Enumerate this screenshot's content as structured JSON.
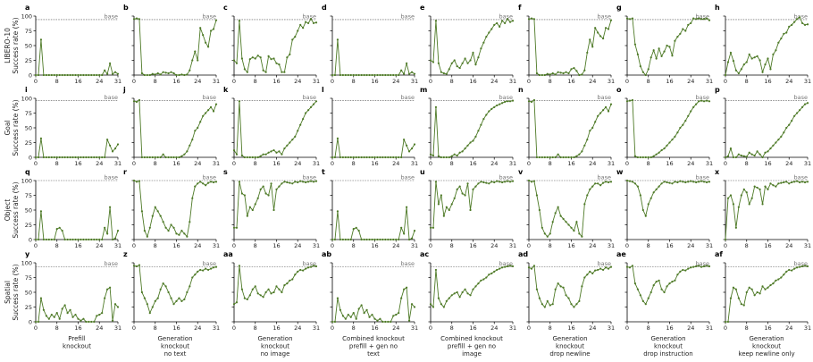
{
  "figure": {
    "row_labels": [
      [
        "LIBERO-10",
        "Success rate (%)"
      ],
      [
        "Goal",
        "Success rate (%)"
      ],
      [
        "Object",
        "Success rate (%)"
      ],
      [
        "Spatial",
        "Success rate (%)"
      ]
    ],
    "col_labels": [
      [
        "Prefill",
        "knockout"
      ],
      [
        "Generation",
        "knockout",
        "no text"
      ],
      [
        "Generation",
        "knockout",
        "no image"
      ],
      [
        "Combined knockout",
        "prefill + gen no",
        "text"
      ],
      [
        "Combined knockout",
        "prefill + gen no",
        "image"
      ],
      [
        "Generation",
        "knockout",
        "drop newline"
      ],
      [
        "Generation",
        "knockout",
        "drop instruction"
      ],
      [
        "Generation",
        "knockout",
        "keep newline only"
      ]
    ],
    "colors": {
      "line": "#4e7a27",
      "marker": "#4e7a27",
      "baseline": "#555555"
    }
  },
  "chart_data": {
    "type": "line",
    "x_ticks": [
      0,
      8,
      16,
      24,
      31
    ],
    "y_ticks": [
      0,
      25,
      50,
      75,
      100
    ],
    "ylim": [
      0,
      100
    ],
    "xlim": [
      0,
      31
    ],
    "baseline_label": "base",
    "grid": false,
    "panels": [
      {
        "letter": "a",
        "baseline": 94,
        "values": [
          0,
          0,
          60,
          0,
          0,
          0,
          0,
          0,
          0,
          0,
          0,
          0,
          0,
          0,
          0,
          0,
          0,
          0,
          0,
          0,
          0,
          0,
          0,
          0,
          0,
          0,
          8,
          2,
          20,
          2,
          5,
          2
        ]
      },
      {
        "letter": "b",
        "baseline": 94,
        "values": [
          95,
          96,
          95,
          3,
          0,
          0,
          0,
          2,
          1,
          3,
          1,
          5,
          4,
          3,
          5,
          3,
          0,
          0,
          1,
          0,
          1,
          8,
          25,
          40,
          25,
          80,
          68,
          55,
          48,
          75,
          78,
          93
        ]
      },
      {
        "letter": "c",
        "baseline": 94,
        "values": [
          25,
          20,
          92,
          28,
          10,
          5,
          27,
          30,
          28,
          33,
          30,
          8,
          5,
          32,
          27,
          28,
          20,
          18,
          5,
          5,
          30,
          35,
          60,
          65,
          75,
          85,
          80,
          90,
          88,
          95,
          88,
          89
        ]
      },
      {
        "letter": "d",
        "baseline": 94,
        "values": [
          0,
          0,
          60,
          0,
          0,
          0,
          0,
          0,
          0,
          0,
          0,
          0,
          0,
          0,
          0,
          0,
          0,
          0,
          0,
          0,
          0,
          0,
          0,
          0,
          0,
          0,
          8,
          2,
          20,
          2,
          5,
          2
        ]
      },
      {
        "letter": "e",
        "baseline": 94,
        "values": [
          25,
          22,
          92,
          20,
          5,
          3,
          2,
          10,
          20,
          25,
          15,
          12,
          20,
          28,
          20,
          25,
          38,
          18,
          30,
          45,
          55,
          65,
          72,
          78,
          85,
          88,
          82,
          92,
          88,
          95,
          90,
          92
        ]
      },
      {
        "letter": "f",
        "baseline": 94,
        "values": [
          95,
          96,
          95,
          3,
          0,
          0,
          0,
          2,
          1,
          3,
          1,
          5,
          4,
          3,
          5,
          3,
          10,
          12,
          7,
          0,
          1,
          8,
          38,
          60,
          48,
          80,
          72,
          66,
          62,
          80,
          78,
          93
        ]
      },
      {
        "letter": "g",
        "baseline": 94,
        "values": [
          96,
          95,
          96,
          52,
          35,
          15,
          5,
          0,
          10,
          30,
          42,
          28,
          45,
          32,
          40,
          50,
          48,
          33,
          58,
          65,
          70,
          78,
          75,
          85,
          88,
          96,
          95,
          96,
          95,
          95,
          96,
          93
        ]
      },
      {
        "letter": "h",
        "baseline": 94,
        "values": [
          0,
          22,
          38,
          24,
          8,
          3,
          10,
          18,
          22,
          35,
          28,
          30,
          32,
          25,
          5,
          18,
          28,
          10,
          35,
          42,
          55,
          62,
          70,
          72,
          82,
          85,
          90,
          95,
          98,
          88,
          85,
          86
        ]
      },
      {
        "letter": "i",
        "baseline": 96,
        "values": [
          0,
          0,
          32,
          0,
          0,
          0,
          0,
          0,
          0,
          0,
          0,
          0,
          0,
          0,
          0,
          0,
          0,
          0,
          0,
          0,
          0,
          0,
          0,
          0,
          0,
          0,
          0,
          30,
          20,
          10,
          15,
          22
        ]
      },
      {
        "letter": "j",
        "baseline": 96,
        "values": [
          95,
          94,
          97,
          0,
          0,
          0,
          0,
          0,
          0,
          0,
          0,
          5,
          0,
          0,
          0,
          0,
          0,
          0,
          2,
          5,
          10,
          20,
          30,
          45,
          50,
          60,
          70,
          75,
          80,
          85,
          78,
          90
        ]
      },
      {
        "letter": "k",
        "baseline": 96,
        "values": [
          12,
          5,
          95,
          3,
          0,
          0,
          0,
          0,
          0,
          0,
          2,
          5,
          5,
          8,
          10,
          12,
          8,
          10,
          5,
          15,
          20,
          25,
          30,
          35,
          45,
          55,
          65,
          75,
          80,
          85,
          90,
          95
        ]
      },
      {
        "letter": "l",
        "baseline": 96,
        "values": [
          0,
          0,
          32,
          0,
          0,
          0,
          0,
          0,
          0,
          0,
          0,
          0,
          0,
          0,
          0,
          0,
          0,
          0,
          0,
          0,
          0,
          0,
          0,
          0,
          0,
          0,
          0,
          30,
          20,
          10,
          15,
          22
        ]
      },
      {
        "letter": "m",
        "baseline": 96,
        "values": [
          5,
          3,
          85,
          2,
          0,
          0,
          0,
          0,
          2,
          5,
          3,
          8,
          10,
          15,
          20,
          25,
          28,
          35,
          45,
          55,
          65,
          72,
          78,
          82,
          85,
          88,
          90,
          92,
          94,
          95,
          95,
          96
        ]
      },
      {
        "letter": "n",
        "baseline": 96,
        "values": [
          95,
          94,
          97,
          0,
          0,
          0,
          0,
          0,
          0,
          0,
          0,
          5,
          0,
          0,
          0,
          0,
          0,
          0,
          2,
          5,
          10,
          20,
          30,
          45,
          50,
          60,
          70,
          75,
          80,
          85,
          78,
          90
        ]
      },
      {
        "letter": "o",
        "baseline": 96,
        "values": [
          95,
          96,
          97,
          2,
          0,
          0,
          0,
          0,
          0,
          0,
          2,
          5,
          8,
          12,
          15,
          20,
          25,
          30,
          35,
          42,
          50,
          55,
          62,
          70,
          78,
          85,
          90,
          95,
          96,
          95,
          96,
          95
        ]
      },
      {
        "letter": "p",
        "baseline": 96,
        "values": [
          0,
          2,
          15,
          0,
          0,
          5,
          3,
          2,
          1,
          8,
          5,
          3,
          10,
          5,
          0,
          8,
          10,
          15,
          20,
          25,
          30,
          35,
          42,
          50,
          55,
          62,
          70,
          75,
          80,
          85,
          90,
          92
        ]
      },
      {
        "letter": "q",
        "baseline": 100,
        "values": [
          0,
          0,
          48,
          0,
          0,
          0,
          0,
          0,
          18,
          20,
          15,
          0,
          0,
          0,
          0,
          0,
          0,
          0,
          0,
          0,
          0,
          0,
          0,
          0,
          0,
          0,
          20,
          10,
          55,
          0,
          2,
          15
        ]
      },
      {
        "letter": "r",
        "baseline": 100,
        "values": [
          100,
          98,
          99,
          48,
          15,
          5,
          20,
          40,
          55,
          48,
          40,
          30,
          20,
          15,
          25,
          20,
          10,
          8,
          15,
          10,
          5,
          30,
          70,
          90,
          95,
          98,
          95,
          92,
          96,
          98,
          97,
          98
        ]
      },
      {
        "letter": "s",
        "baseline": 100,
        "values": [
          20,
          20,
          98,
          78,
          75,
          40,
          55,
          50,
          60,
          70,
          85,
          90,
          78,
          75,
          95,
          50,
          85,
          90,
          95,
          98,
          97,
          96,
          95,
          98,
          97,
          99,
          98,
          97,
          98,
          99,
          98,
          99
        ]
      },
      {
        "letter": "t",
        "baseline": 100,
        "values": [
          0,
          0,
          48,
          0,
          0,
          0,
          0,
          0,
          18,
          20,
          15,
          0,
          0,
          0,
          0,
          0,
          0,
          0,
          0,
          0,
          0,
          0,
          0,
          0,
          0,
          0,
          20,
          10,
          55,
          0,
          2,
          15
        ]
      },
      {
        "letter": "u",
        "baseline": 100,
        "values": [
          20,
          20,
          98,
          60,
          75,
          40,
          55,
          50,
          60,
          70,
          85,
          90,
          78,
          75,
          95,
          50,
          85,
          90,
          95,
          98,
          97,
          96,
          95,
          98,
          97,
          99,
          98,
          97,
          98,
          99,
          98,
          99
        ]
      },
      {
        "letter": "v",
        "baseline": 100,
        "values": [
          100,
          98,
          99,
          75,
          50,
          20,
          10,
          5,
          10,
          30,
          45,
          55,
          40,
          35,
          30,
          25,
          20,
          15,
          30,
          10,
          5,
          60,
          75,
          85,
          90,
          95,
          95,
          92,
          96,
          98,
          97,
          98
        ]
      },
      {
        "letter": "w",
        "baseline": 100,
        "values": [
          100,
          99,
          98,
          95,
          90,
          75,
          50,
          40,
          60,
          70,
          80,
          85,
          90,
          95,
          98,
          97,
          96,
          95,
          98,
          97,
          99,
          98,
          97,
          98,
          99,
          98,
          97,
          98,
          99,
          98,
          97,
          98
        ]
      },
      {
        "letter": "x",
        "baseline": 100,
        "values": [
          0,
          70,
          75,
          60,
          20,
          55,
          75,
          85,
          80,
          60,
          70,
          90,
          88,
          85,
          60,
          90,
          85,
          95,
          92,
          90,
          95,
          96,
          97,
          98,
          95,
          97,
          98,
          99,
          97,
          98,
          97,
          98
        ]
      },
      {
        "letter": "y",
        "baseline": 93,
        "values": [
          0,
          0,
          40,
          20,
          10,
          5,
          12,
          8,
          15,
          5,
          22,
          28,
          15,
          20,
          8,
          12,
          5,
          2,
          5,
          0,
          0,
          0,
          0,
          10,
          12,
          15,
          40,
          55,
          58,
          2,
          30,
          25
        ]
      },
      {
        "letter": "z",
        "baseline": 93,
        "values": [
          95,
          94,
          96,
          50,
          40,
          30,
          15,
          25,
          35,
          40,
          55,
          65,
          60,
          50,
          40,
          30,
          35,
          40,
          35,
          38,
          50,
          60,
          75,
          80,
          85,
          88,
          87,
          90,
          88,
          90,
          92,
          93
        ]
      },
      {
        "letter": "aa",
        "baseline": 93,
        "values": [
          30,
          33,
          95,
          55,
          40,
          38,
          45,
          55,
          60,
          48,
          45,
          42,
          50,
          55,
          48,
          50,
          60,
          55,
          50,
          62,
          65,
          70,
          72,
          80,
          85,
          88,
          87,
          90,
          92,
          93,
          95,
          94
        ]
      },
      {
        "letter": "ab",
        "baseline": 93,
        "values": [
          0,
          0,
          40,
          20,
          10,
          5,
          12,
          8,
          15,
          5,
          22,
          28,
          15,
          20,
          8,
          12,
          5,
          2,
          5,
          0,
          0,
          0,
          0,
          10,
          12,
          15,
          40,
          55,
          58,
          2,
          30,
          25
        ]
      },
      {
        "letter": "ac",
        "baseline": 93,
        "values": [
          30,
          25,
          88,
          40,
          30,
          25,
          35,
          40,
          45,
          48,
          50,
          42,
          50,
          55,
          48,
          45,
          55,
          60,
          65,
          70,
          72,
          75,
          80,
          82,
          85,
          88,
          90,
          92,
          93,
          94,
          95,
          94
        ]
      },
      {
        "letter": "ad",
        "baseline": 93,
        "values": [
          92,
          90,
          95,
          55,
          40,
          30,
          25,
          35,
          28,
          30,
          55,
          65,
          60,
          58,
          45,
          40,
          30,
          25,
          30,
          35,
          60,
          75,
          80,
          85,
          82,
          87,
          88,
          90,
          88,
          92,
          90,
          93
        ]
      },
      {
        "letter": "ae",
        "baseline": 93,
        "values": [
          93,
          92,
          95,
          65,
          55,
          45,
          35,
          30,
          40,
          50,
          62,
          68,
          70,
          55,
          50,
          60,
          65,
          68,
          70,
          80,
          85,
          88,
          87,
          90,
          92,
          93,
          94,
          95,
          93,
          94,
          95,
          94
        ]
      },
      {
        "letter": "af",
        "baseline": 93,
        "values": [
          0,
          0,
          40,
          58,
          55,
          40,
          30,
          28,
          50,
          58,
          55,
          45,
          50,
          48,
          60,
          55,
          58,
          62,
          65,
          70,
          72,
          75,
          80,
          85,
          88,
          87,
          90,
          92,
          93,
          94,
          95,
          94
        ]
      }
    ]
  }
}
